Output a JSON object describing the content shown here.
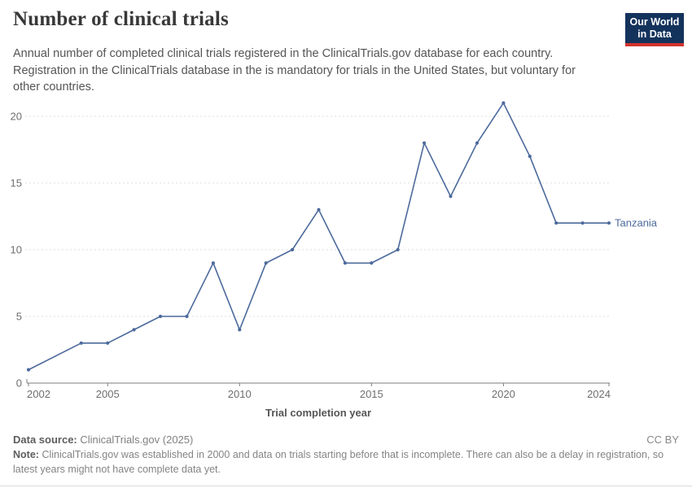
{
  "header": {
    "title": "Number of clinical trials",
    "subtitle": "Annual number of completed clinical trials registered in the ClinicalTrials.gov database for each country. Registration in the ClinicalTrials database in the is mandatory for trials in the United States, but voluntary for other countries.",
    "logo_line1": "Our World",
    "logo_line2": "in Data",
    "logo_bg_color": "#14335c",
    "logo_accent_color": "#d0342c"
  },
  "chart_data": {
    "type": "line",
    "title": "Number of clinical trials",
    "xlabel": "Trial completion year",
    "ylabel": "",
    "xlim": [
      2002,
      2024
    ],
    "ylim": [
      0,
      21
    ],
    "x_ticks": [
      2002,
      2005,
      2010,
      2015,
      2020,
      2024
    ],
    "y_ticks": [
      0,
      5,
      10,
      15,
      20
    ],
    "grid": "horizontal-dashed",
    "legend_position": "end-of-line-label",
    "axis_color": "#7d7d7d",
    "tick_label_color": "#6e6e6e",
    "gridline_color": "#dcdcdc",
    "series": [
      {
        "name": "Tanzania",
        "color": "#4c6a9c",
        "points": [
          [
            2002,
            1
          ],
          [
            2004,
            3
          ],
          [
            2005,
            3
          ],
          [
            2006,
            4
          ],
          [
            2007,
            5
          ],
          [
            2008,
            5
          ],
          [
            2009,
            9
          ],
          [
            2010,
            4
          ],
          [
            2011,
            9
          ],
          [
            2012,
            10
          ],
          [
            2013,
            13
          ],
          [
            2014,
            9
          ],
          [
            2015,
            9
          ],
          [
            2016,
            10
          ],
          [
            2017,
            18
          ],
          [
            2018,
            14
          ],
          [
            2019,
            18
          ],
          [
            2020,
            21
          ],
          [
            2021,
            17
          ],
          [
            2022,
            12
          ],
          [
            2023,
            12
          ],
          [
            2024,
            12
          ]
        ]
      }
    ]
  },
  "footer": {
    "data_source_label": "Data source:",
    "data_source_value": "ClinicalTrials.gov (2025)",
    "license": "CC BY",
    "note_label": "Note:",
    "note_text": "ClinicalTrials.gov was established in 2000 and data on trials starting before that is incomplete. There can also be a delay in registration, so latest years might not have complete data yet."
  }
}
